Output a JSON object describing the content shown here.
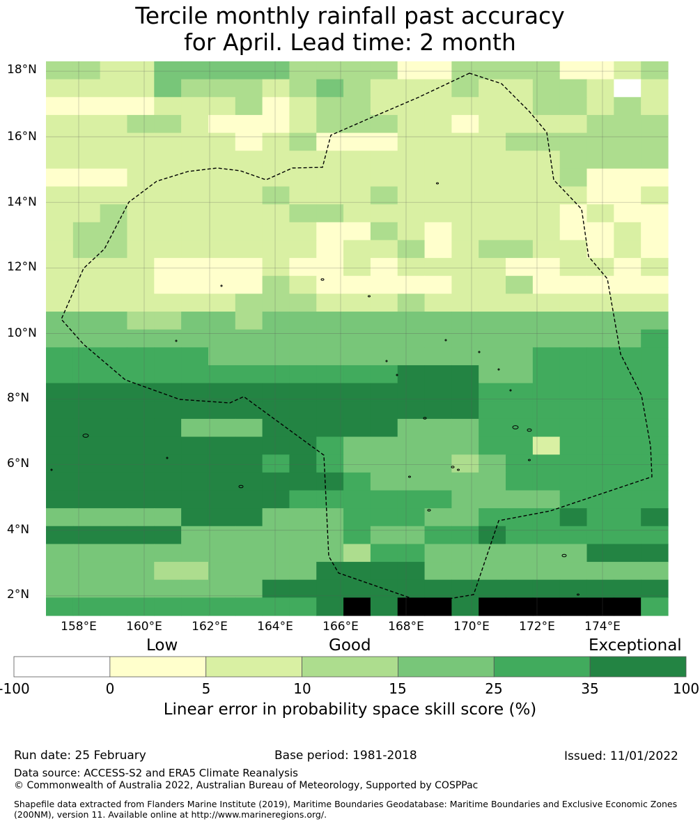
{
  "title": {
    "line1": "Tercile monthly rainfall past accuracy",
    "line2": "for April. Lead time: 2 month"
  },
  "map": {
    "lat_labels": [
      "18°N",
      "16°N",
      "14°N",
      "12°N",
      "10°N",
      "8°N",
      "6°N",
      "4°N",
      "2°N"
    ],
    "lat_values": [
      18,
      16,
      14,
      12,
      10,
      8,
      6,
      4,
      2
    ],
    "lon_labels": [
      "158°E",
      "160°E",
      "162°E",
      "164°E",
      "166°E",
      "168°E",
      "170°E",
      "172°E",
      "174°E"
    ],
    "lon_values": [
      158,
      160,
      162,
      164,
      166,
      168,
      170,
      172,
      174
    ],
    "extent": {
      "lon_min": 157,
      "lon_max": 176,
      "lat_min": 1.4,
      "lat_max": 18.3
    },
    "cell_size_deg": 0.833,
    "grid_rows_north_to_south": [
      "33224444433331133331123",
      "22224333234322232233202",
      "11112223123322222233232",
      "22233211123332212222333",
      "22222221231112222333333",
      "22222222222222222223333",
      "11122222222222222223111",
      "22222222322232222222112",
      "22322222233222222221211",
      "23322222221132122221121",
      "23322222221223123322121",
      "22221111211212222112212",
      "22221111321111122311111",
      "22222223332223222222222",
      "44433443444444444444444",
      "44444444444444444444445",
      "55555544444444444455555",
      "55555555555556664455555",
      "66666666666666665555555",
      "66666666666666665555555",
      "66666444666664445555555",
      "66666666665444445525555",
      "66666666565444434555555",
      "66666666666544444555555",
      "66666666655555544445555",
      "44444666444555445556556",
      "66666444444544556555555",
      "44444444444355444444666",
      "44443344446666444444444",
      "44444444666666666666666",
      "55555555556767767777775"
    ],
    "legend": {
      "category_labels": [
        "Low",
        "Good",
        "Exceptional"
      ],
      "tick_labels": [
        "-100",
        "0",
        "5",
        "10",
        "15",
        "25",
        "35",
        "100"
      ],
      "colors": [
        "#ffffff",
        "#ffffcc",
        "#d9f0a3",
        "#addd8e",
        "#78c679",
        "#41ab5d",
        "#238443"
      ],
      "title": "Linear error in probability space skill score (%)"
    }
  },
  "footer": {
    "run_date": "Run date: 25 February",
    "base_period": "Base period: 1981-2018",
    "issued": "Issued: 11/01/2022",
    "data_source": "Data source: ACCESS-S2 and ERA5 Climate Reanalysis",
    "copyright": "© Commonwealth of Australia 2022, Australian Bureau of Meteorology, Supported by COSPPac",
    "shapefile_note": "Shapefile data extracted from Flanders Marine Institute (2019), Maritime Boundaries Geodatabase: Maritime Boundaries and Exclusive Economic Zones (200NM), version 11. Available online at http://www.marineregions.org/."
  }
}
